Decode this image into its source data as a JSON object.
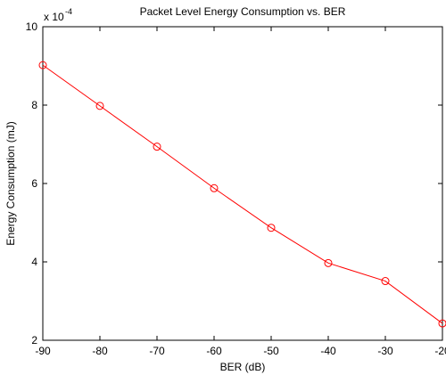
{
  "chart_data": {
    "type": "line",
    "title": "Packet Level Energy Consumption vs. BER",
    "xlabel": "BER (dB)",
    "ylabel": "Energy Consumption (mJ)",
    "y_exponent_label": "x 10",
    "y_exponent_power": "-4",
    "xlim": [
      -90,
      -20
    ],
    "ylim": [
      2,
      10
    ],
    "x_ticks": [
      -90,
      -80,
      -70,
      -60,
      -50,
      -40,
      -30,
      -20
    ],
    "y_ticks": [
      2,
      4,
      6,
      8,
      10
    ],
    "x_tick_labels": [
      "-90",
      "-80",
      "-70",
      "-60",
      "-50",
      "-40",
      "-30",
      "-20"
    ],
    "y_tick_labels": [
      "2",
      "4",
      "6",
      "8",
      "10"
    ],
    "grid": false,
    "legend": "none",
    "series": [
      {
        "color": "#ff0000",
        "marker": "circle",
        "x": [
          -90,
          -80,
          -70,
          -60,
          -50,
          -40,
          -30,
          -20
        ],
        "y": [
          9.02,
          7.98,
          6.94,
          5.88,
          4.87,
          3.97,
          3.51,
          2.43
        ]
      }
    ]
  }
}
